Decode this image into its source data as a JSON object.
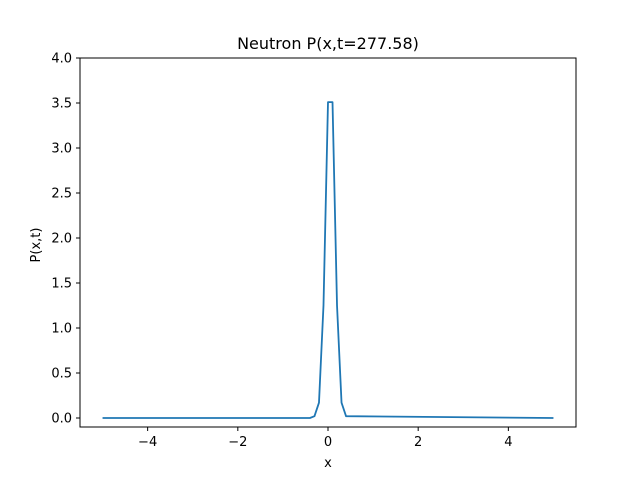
{
  "chart_data": {
    "type": "line",
    "title": "Neutron P(x,t=277.58)",
    "xlabel": "x",
    "ylabel": "P(x,t)",
    "xlim": [
      -5.5,
      5.5
    ],
    "ylim": [
      -0.1,
      4.0
    ],
    "x_ticks": [
      -4,
      -2,
      0,
      2,
      4
    ],
    "x_tick_labels": [
      "−4",
      "−2",
      "0",
      "2",
      "4"
    ],
    "y_ticks": [
      0.0,
      0.5,
      1.0,
      1.5,
      2.0,
      2.5,
      3.0,
      3.5,
      4.0
    ],
    "y_tick_labels": [
      "0.0",
      "0.5",
      "1.0",
      "1.5",
      "2.0",
      "2.5",
      "3.0",
      "3.5",
      "4.0"
    ],
    "grid": false,
    "series": [
      {
        "color": "#1f77b4",
        "x": [
          -5.0,
          -0.4,
          -0.3,
          -0.2,
          -0.1,
          0.0,
          0.1,
          0.2,
          0.3,
          0.4,
          5.0
        ],
        "y": [
          0.0,
          0.0,
          0.02,
          0.17,
          1.25,
          3.51,
          3.51,
          1.25,
          0.17,
          0.02,
          0.0
        ]
      }
    ]
  }
}
